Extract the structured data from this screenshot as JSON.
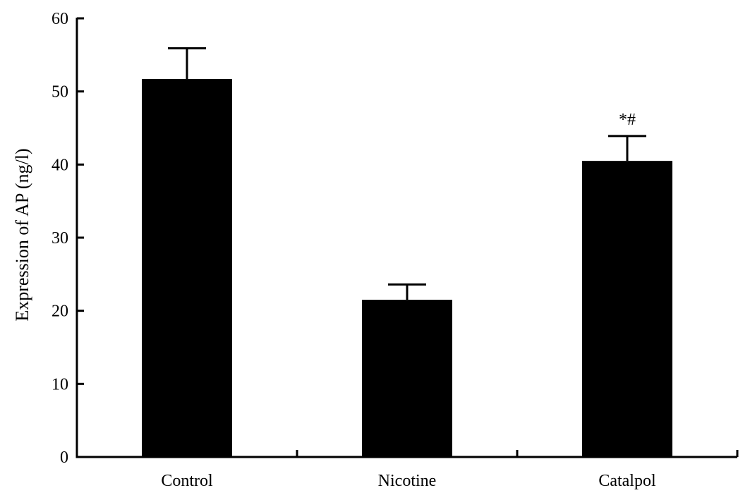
{
  "chart_data": {
    "type": "bar",
    "title": "",
    "xlabel": "",
    "ylabel": "Expression of  AP  (ng/l)",
    "categories": [
      "Control",
      "Nicotine",
      "Catalpol"
    ],
    "values": [
      51.7,
      21.5,
      40.5
    ],
    "error": [
      4.2,
      2.1,
      3.4
    ],
    "annotations": [
      "",
      "",
      "*#"
    ],
    "ylim": [
      0,
      60
    ],
    "yticks": [
      0,
      10,
      20,
      30,
      40,
      50,
      60
    ],
    "grid": false,
    "legend": "none",
    "bar_color": "#000000"
  }
}
